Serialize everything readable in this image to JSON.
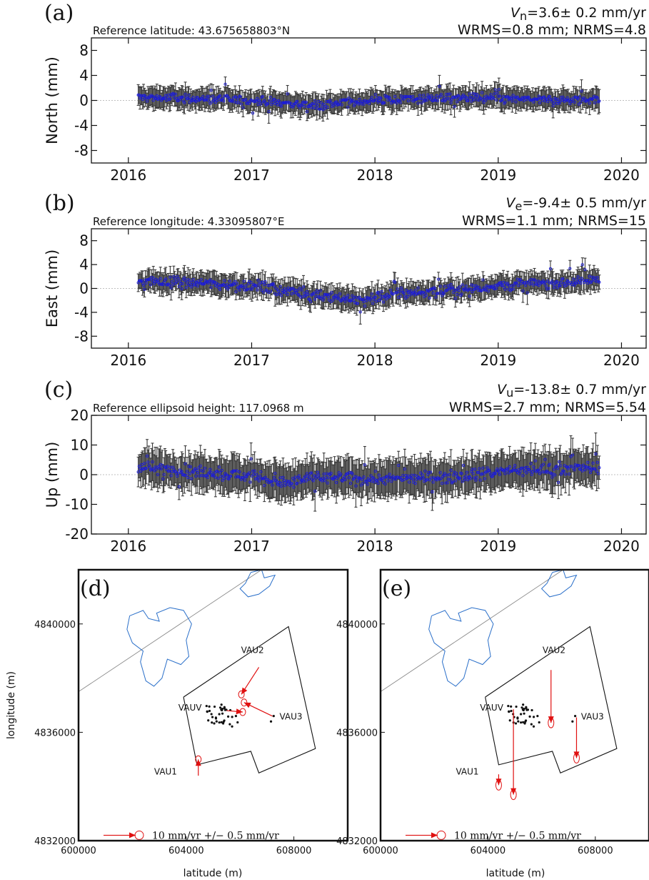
{
  "panels": [
    {
      "id": "a",
      "label": "(a)",
      "ref_text": "Reference latitude: 43.675658803°N",
      "vel_sym": "V",
      "vel_sub": "n",
      "vel_val": "=3.6± 0.2 mm/yr",
      "stats": "WRMS=0.8 mm; NRMS=4.8"
    },
    {
      "id": "b",
      "label": "(b)",
      "ref_text": "Reference longitude: 4.33095807°E",
      "vel_sym": "V",
      "vel_sub": "e",
      "vel_val": "=-9.4± 0.5 mm/yr",
      "stats": "WRMS=1.1 mm; NRMS=15"
    },
    {
      "id": "c",
      "label": "(c)",
      "ref_text": "Reference ellipsoid height: 117.0968 m",
      "vel_sym": "V",
      "vel_sub": "u",
      "vel_val": "=-13.8± 0.7 mm/yr",
      "stats": "WRMS=2.7 mm; NRMS=5.54"
    },
    {
      "id": "d",
      "label": "(d)",
      "legend": "10 mm/yr +/− 0.5 mm/yr"
    },
    {
      "id": "e",
      "label": "(e)",
      "legend": "10 mm/yr +/− 0.5 mm/yr"
    }
  ],
  "chart_data": [
    {
      "type": "scatter",
      "panel": "a",
      "ylabel": "North (mm)",
      "xlim": [
        2015.7,
        2020.2
      ],
      "ylim": [
        -10,
        10
      ],
      "x_ticks": [
        2016,
        2017,
        2018,
        2019,
        2020
      ],
      "y_ticks": [
        8,
        4,
        0,
        -4,
        -8
      ],
      "series": [
        {
          "x_start": 2016.08,
          "x_end": 2019.82,
          "anchors": [
            [
              2016.08,
              0.5
            ],
            [
              2016.5,
              0.3
            ],
            [
              2017.0,
              0.0
            ],
            [
              2017.5,
              -0.8
            ],
            [
              2018.0,
              0.0
            ],
            [
              2018.5,
              0.4
            ],
            [
              2019.0,
              0.3
            ],
            [
              2019.5,
              0.0
            ],
            [
              2019.82,
              0.2
            ]
          ],
          "scatter": 0.7,
          "errorbar": 1.5
        }
      ]
    },
    {
      "type": "scatter",
      "panel": "b",
      "ylabel": "East (mm)",
      "xlim": [
        2015.7,
        2020.2
      ],
      "ylim": [
        -10,
        10
      ],
      "x_ticks": [
        2016,
        2017,
        2018,
        2019,
        2020
      ],
      "y_ticks": [
        8,
        4,
        0,
        -4,
        -8
      ],
      "series": [
        {
          "x_start": 2016.08,
          "x_end": 2019.82,
          "anchors": [
            [
              2016.08,
              1.2
            ],
            [
              2016.5,
              1.0
            ],
            [
              2017.0,
              0.5
            ],
            [
              2017.5,
              -1.0
            ],
            [
              2017.9,
              -2.0
            ],
            [
              2018.2,
              -0.8
            ],
            [
              2018.6,
              -0.5
            ],
            [
              2019.0,
              0.5
            ],
            [
              2019.5,
              1.0
            ],
            [
              2019.82,
              1.5
            ]
          ],
          "scatter": 0.9,
          "errorbar": 1.6
        }
      ]
    },
    {
      "type": "scatter",
      "panel": "c",
      "ylabel": "Up (mm)",
      "xlim": [
        2015.7,
        2020.2
      ],
      "ylim": [
        -20,
        20
      ],
      "x_ticks": [
        2016,
        2017,
        2018,
        2019,
        2020
      ],
      "y_ticks": [
        20,
        10,
        0,
        -10,
        -20
      ],
      "series": [
        {
          "x_start": 2016.08,
          "x_end": 2019.82,
          "anchors": [
            [
              2016.08,
              2.5
            ],
            [
              2016.5,
              1.0
            ],
            [
              2017.0,
              -0.5
            ],
            [
              2017.3,
              -3.0
            ],
            [
              2017.5,
              -1.0
            ],
            [
              2018.0,
              -1.5
            ],
            [
              2018.5,
              -1.0
            ],
            [
              2019.0,
              1.0
            ],
            [
              2019.5,
              2.0
            ],
            [
              2019.82,
              2.5
            ]
          ],
          "scatter": 2.0,
          "errorbar": 5.5
        }
      ]
    },
    {
      "type": "map",
      "panel": "d",
      "xlabel": "latitude (m)",
      "ylabel": "longitude (m)",
      "xlim": [
        600000,
        610000
      ],
      "ylim": [
        4832000,
        4842000
      ],
      "x_ticks": [
        600000,
        604000,
        608000
      ],
      "y_ticks": [
        4840000,
        4836000,
        4832000
      ],
      "stations": [
        {
          "name": "VAUV",
          "x": 605300,
          "y": 4836800
        },
        {
          "name": "VAU2",
          "x": 606700,
          "y": 4838400
        },
        {
          "name": "VAU3",
          "x": 607200,
          "y": 4836600
        },
        {
          "name": "VAU1",
          "x": 604400,
          "y": 4834550
        }
      ],
      "vectors": [
        {
          "from": [
            606700,
            4838400
          ],
          "to": [
            606050,
            4837400
          ]
        },
        {
          "from": [
            607200,
            4836600
          ],
          "to": [
            606150,
            4837100
          ]
        },
        {
          "from": [
            604450,
            4834400
          ],
          "to": [
            604450,
            4835000
          ]
        },
        {
          "from": [
            605500,
            4836800
          ],
          "to": [
            606100,
            4836750
          ]
        }
      ]
    },
    {
      "type": "map",
      "panel": "e",
      "xlabel": "latitude (m)",
      "ylabel": "longitude (m)",
      "xlim": [
        600000,
        610000
      ],
      "ylim": [
        4832000,
        4842000
      ],
      "x_ticks": [
        600000,
        604000,
        608000
      ],
      "y_ticks": [
        4840000,
        4836000,
        4832000
      ],
      "stations": [
        {
          "name": "VAUV",
          "x": 605300,
          "y": 4836800
        },
        {
          "name": "VAU2",
          "x": 606700,
          "y": 4838400
        },
        {
          "name": "VAU3",
          "x": 607200,
          "y": 4836600
        },
        {
          "name": "VAU1",
          "x": 604400,
          "y": 4834550
        }
      ],
      "vectors": [
        {
          "from": [
            606350,
            4838300
          ],
          "to": [
            606350,
            4836350
          ]
        },
        {
          "from": [
            607300,
            4836550
          ],
          "to": [
            607300,
            4835050
          ]
        },
        {
          "from": [
            604950,
            4836850
          ],
          "to": [
            604950,
            4833700
          ]
        },
        {
          "from": [
            604400,
            4834450
          ],
          "to": [
            604400,
            4834050
          ]
        }
      ]
    }
  ]
}
